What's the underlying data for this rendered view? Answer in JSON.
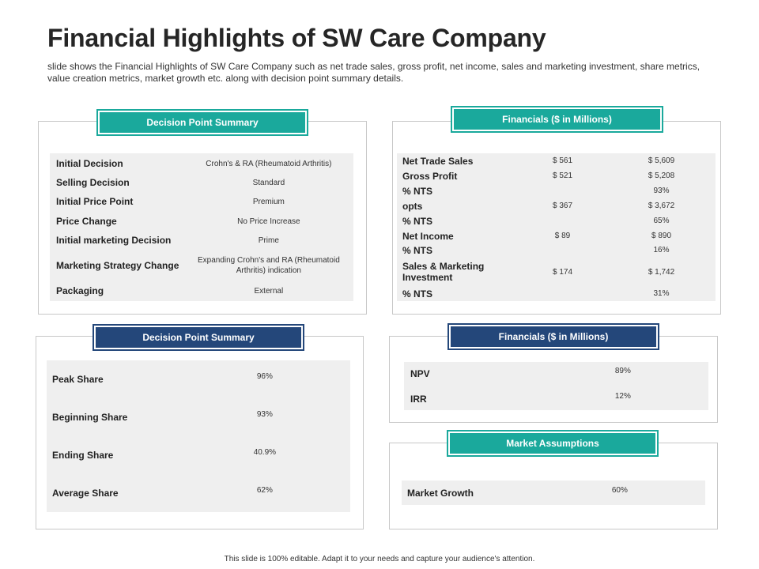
{
  "title": "Financial Highlights of SW Care Company",
  "subtitle": "slide shows the Financial Highlights of SW Care Company  such as net trade sales, gross profit, net income, sales and marketing investment, share metrics, value creation metrics, market growth etc. along with decision point summary details.",
  "decision_top": {
    "header": "Decision Point Summary",
    "rows": [
      {
        "label": "Initial Decision",
        "value": "Crohn's & RA (Rheumatoid Arthritis)"
      },
      {
        "label": "Selling Decision",
        "value": "Standard"
      },
      {
        "label": "Initial Price Point",
        "value": "Premium"
      },
      {
        "label": "Price Change",
        "value": "No Price Increase"
      },
      {
        "label": "Initial marketing Decision",
        "value": "Prime"
      },
      {
        "label": "Marketing Strategy Change",
        "value": "Expanding Crohn's and RA (Rheumatoid Arthritis) indication"
      },
      {
        "label": "Packaging",
        "value": "External"
      }
    ]
  },
  "financials_top": {
    "header": "Financials ($ in Millions)",
    "rows": [
      {
        "label": "Net Trade Sales",
        "v1": "$ 561",
        "v2": "$ 5,609"
      },
      {
        "label": "Gross Profit",
        "v1": "$ 521",
        "v2": "$ 5,208"
      },
      {
        "label": "% NTS",
        "v1": "",
        "v2": "93%"
      },
      {
        "label": "opts",
        "v1": "$ 367",
        "v2": "$ 3,672"
      },
      {
        "label": "% NTS",
        "v1": "",
        "v2": "65%"
      },
      {
        "label": "Net Income",
        "v1": "$ 89",
        "v2": "$ 890"
      },
      {
        "label": "% NTS",
        "v1": "",
        "v2": "16%"
      },
      {
        "label": "Sales & Marketing Investment",
        "v1": "$ 174",
        "v2": "$ 1,742"
      },
      {
        "label": "% NTS",
        "v1": "",
        "v2": "31%"
      }
    ]
  },
  "decision_bottom": {
    "header": "Decision Point Summary",
    "rows": [
      {
        "label": "Peak Share",
        "value": "96%"
      },
      {
        "label": "Beginning  Share",
        "value": "93%"
      },
      {
        "label": "Ending  Share",
        "value": "40.9%"
      },
      {
        "label": "Average Share",
        "value": "62%"
      }
    ]
  },
  "financials_bottom": {
    "header": "Financials ($ in Millions)",
    "rows": [
      {
        "label": "NPV",
        "value": "89%"
      },
      {
        "label": "IRR",
        "value": "12%"
      }
    ]
  },
  "market": {
    "header": "Market Assumptions",
    "rows": [
      {
        "label": "Market Growth",
        "value": "60%"
      }
    ]
  },
  "footer": "This slide is 100% editable. Adapt it to your needs and capture your audience's attention.",
  "colors": {
    "teal": "#1aa99c",
    "navy": "#24477a"
  }
}
